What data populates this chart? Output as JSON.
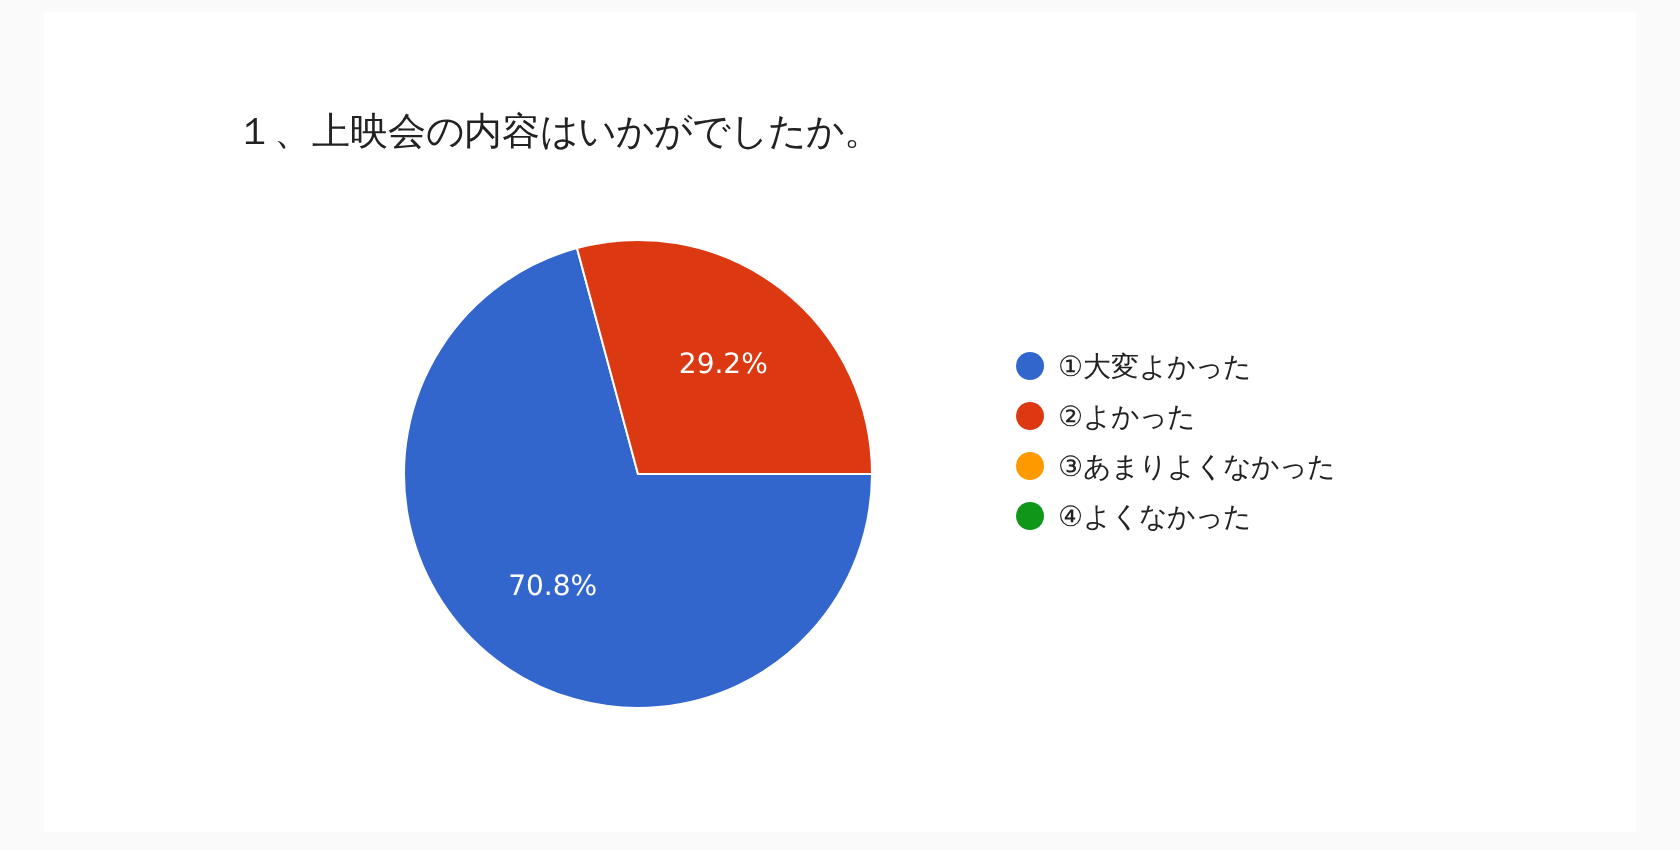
{
  "chart_data": {
    "type": "pie",
    "title": "１、上映会の内容はいかがでしたか。",
    "categories": [
      "①大変よかった",
      "②よかった",
      "③あまりよくなかった",
      "④よくなかった"
    ],
    "values": [
      70.8,
      29.2,
      0,
      0
    ],
    "value_labels": [
      "70.8%",
      "29.2%",
      null,
      null
    ],
    "colors": [
      "#3366cc",
      "#dc3912",
      "#ff9900",
      "#109618"
    ],
    "legend": "right"
  }
}
